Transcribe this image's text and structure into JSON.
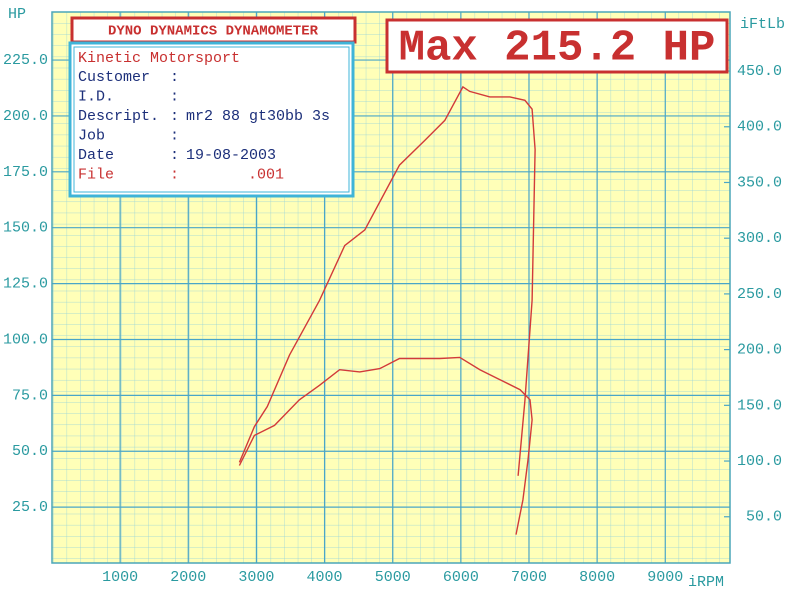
{
  "chart_data": {
    "type": "line",
    "title": "DYNO DYNAMICS DYNAMOMETER",
    "max_label": "Max 215.2 HP",
    "info": {
      "company": "Kinetic Motorsport",
      "separator": ":",
      "rows": [
        {
          "label": "Customer"
        },
        {
          "label": "I.D."
        },
        {
          "label": "Descript.",
          "value": "mr2 88 gt30bb 3s"
        },
        {
          "label": "Job"
        },
        {
          "label": "Date",
          "value": "19-08-2003"
        },
        {
          "label": "File",
          "value": ".001"
        }
      ]
    },
    "y_label": "HP",
    "y2_label": "iFtLb",
    "x_label": "iRPM",
    "xlim": [
      0,
      9950
    ],
    "xticks": [
      1000,
      2000,
      3000,
      4000,
      5000,
      6000,
      7000,
      8000,
      9000
    ],
    "ylim": [
      0,
      246.5
    ],
    "yticks": [
      {
        "value": 25,
        "label": "25.0"
      },
      {
        "value": 50,
        "label": "50.0"
      },
      {
        "value": 75,
        "label": "75.0"
      },
      {
        "value": 100,
        "label": "100.0"
      },
      {
        "value": 125,
        "label": "125.0"
      },
      {
        "value": 150,
        "label": "150.0"
      },
      {
        "value": 175,
        "label": "175.0"
      },
      {
        "value": 200,
        "label": "200.0"
      },
      {
        "value": 225,
        "label": "225.0"
      }
    ],
    "y2lim": [
      8.5,
      503
    ],
    "y2ticks": [
      {
        "value": 50,
        "label": "50.0"
      },
      {
        "value": 100,
        "label": "100.0"
      },
      {
        "value": 150,
        "label": "150.0"
      },
      {
        "value": 200,
        "label": "200.0"
      },
      {
        "value": 250,
        "label": "250.0"
      },
      {
        "value": 300,
        "label": "300.0"
      },
      {
        "value": 350,
        "label": "350.0"
      },
      {
        "value": 400,
        "label": "400.0"
      },
      {
        "value": 450,
        "label": "450.0"
      }
    ],
    "grid": true,
    "series": [
      {
        "color": "#d23a3a",
        "x": [
          2750,
          2970,
          3160,
          3485,
          3925,
          4295,
          4590,
          5100,
          5470,
          5765,
          6030,
          6130,
          6425,
          6720,
          6940,
          7045,
          7090,
          7045,
          6940,
          6840
        ],
        "values": [
          45,
          61,
          70,
          93,
          117.5,
          142,
          149,
          178,
          189,
          198,
          213,
          211,
          208.5,
          208.5,
          207,
          203,
          185,
          117.5,
          72.6,
          39
        ]
      },
      {
        "color": "#d23a3a",
        "axis": "y2",
        "x": [
          2750,
          2970,
          3265,
          3630,
          3925,
          4220,
          4515,
          4810,
          5100,
          5400,
          5690,
          5985,
          6280,
          6575,
          6870,
          7015,
          7045,
          6985,
          6910,
          6810
        ],
        "values": [
          96,
          123,
          132,
          155,
          168,
          182,
          180,
          183,
          192,
          192,
          192,
          193,
          182,
          173,
          164,
          155,
          137,
          101,
          65,
          34
        ]
      }
    ]
  }
}
